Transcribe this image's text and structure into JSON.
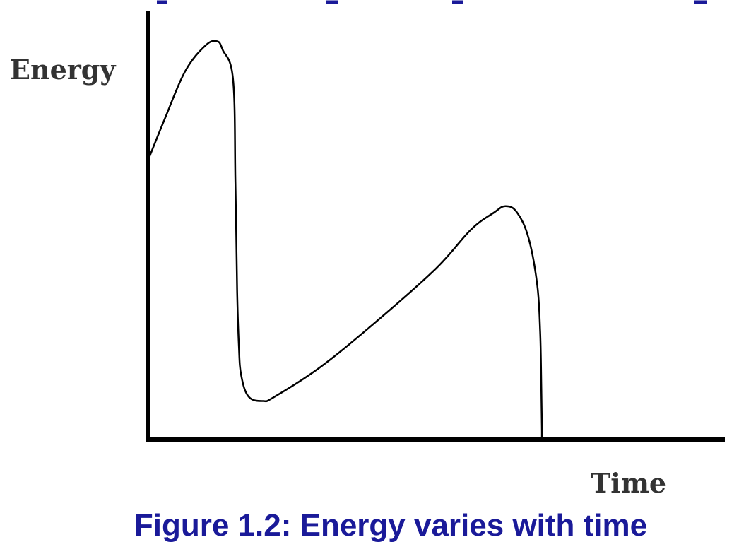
{
  "chart_data": {
    "type": "line",
    "xlabel": "Time",
    "ylabel": "Energy",
    "caption": "Figure 1.2: Energy varies with time",
    "xlim": [
      0,
      10
    ],
    "ylim": [
      0,
      10
    ],
    "grid": false,
    "series": [
      {
        "x": [
          0,
          0.3,
          0.65,
          1.0,
          1.2,
          1.3,
          1.48,
          1.52,
          1.55,
          1.58,
          1.62,
          1.75,
          2.0,
          2.2,
          3.0,
          4.0,
          5.0,
          5.6,
          6.0,
          6.2,
          6.4,
          6.6,
          6.75,
          6.8,
          6.82,
          6.83,
          6.83
        ],
        "y": [
          6.5,
          7.5,
          8.6,
          9.2,
          9.3,
          9.1,
          8.4,
          6.0,
          3.5,
          2.2,
          1.5,
          1.0,
          0.9,
          1.0,
          1.7,
          2.8,
          4.0,
          4.9,
          5.3,
          5.45,
          5.3,
          4.7,
          3.6,
          2.5,
          1.2,
          0.3,
          0.0
        ]
      }
    ],
    "line_color": "#000000",
    "axis_color": "#000000",
    "caption_color": "#1a1a99"
  }
}
